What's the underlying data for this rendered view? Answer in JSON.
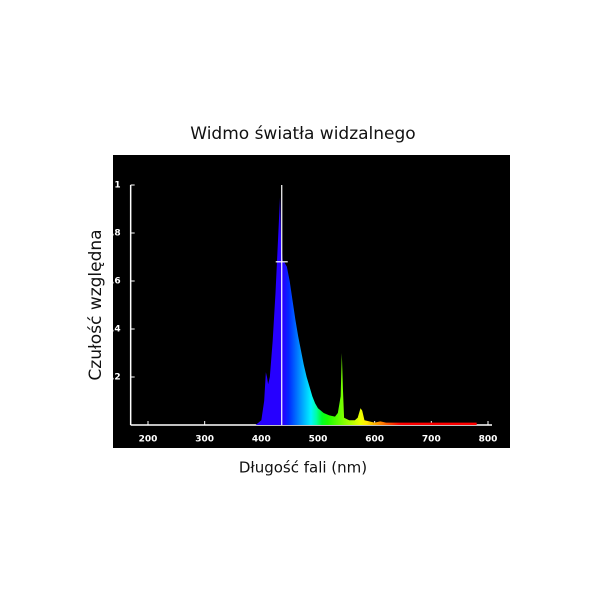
{
  "chart_data": {
    "type": "area",
    "title": "Widmo światła widzalnego",
    "xlabel": "Długość fali (nm)",
    "ylabel": "Czułość względna",
    "x": [
      390,
      400,
      405,
      408,
      410,
      412,
      415,
      420,
      425,
      430,
      433,
      435,
      438,
      440,
      445,
      450,
      455,
      460,
      465,
      470,
      475,
      480,
      485,
      490,
      495,
      500,
      510,
      520,
      530,
      535,
      540,
      542,
      544,
      546,
      555,
      565,
      570,
      575,
      578,
      582,
      600,
      610,
      620,
      700,
      780
    ],
    "values": [
      0,
      0.02,
      0.1,
      0.22,
      0.2,
      0.17,
      0.2,
      0.35,
      0.55,
      0.8,
      0.95,
      0.75,
      0.68,
      0.68,
      0.66,
      0.6,
      0.52,
      0.44,
      0.37,
      0.31,
      0.25,
      0.2,
      0.16,
      0.12,
      0.09,
      0.07,
      0.05,
      0.04,
      0.035,
      0.05,
      0.12,
      0.3,
      0.15,
      0.03,
      0.02,
      0.02,
      0.03,
      0.07,
      0.06,
      0.02,
      0.01,
      0.015,
      0.01,
      0.01,
      0.01
    ],
    "marker_x": 436,
    "marker_level": 0.68,
    "xlim": [
      180,
      800
    ],
    "ylim": [
      0,
      1
    ],
    "xticks": [
      200,
      300,
      400,
      500,
      600,
      700,
      800
    ],
    "yticks": [
      0.2,
      0.4,
      0.6,
      0.8,
      1
    ]
  }
}
